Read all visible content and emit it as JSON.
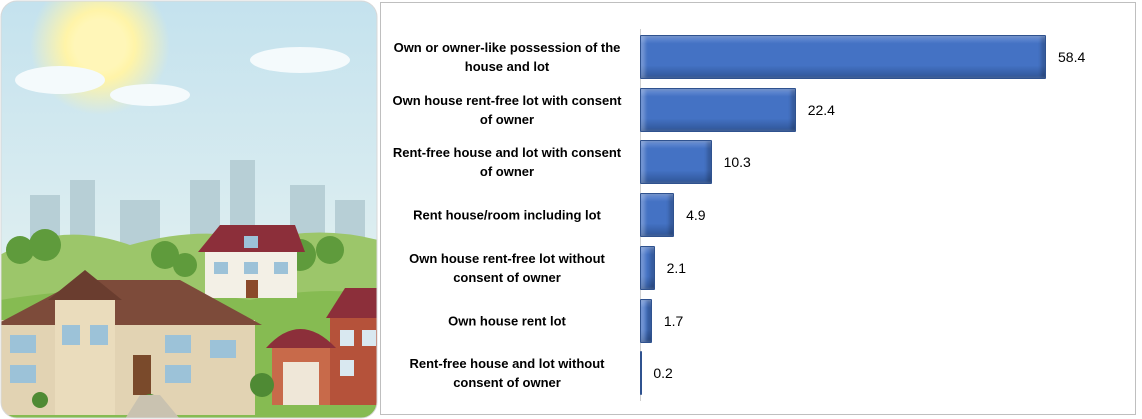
{
  "chart_data": {
    "type": "bar",
    "orientation": "horizontal",
    "categories": [
      "Own or owner-like possession of the house and lot",
      "Own house rent-free lot with consent of owner",
      "Rent-free house and lot with consent of owner",
      "Rent house/room including lot",
      "Own house rent-free lot without consent of owner",
      "Own house rent lot",
      "Rent-free house and lot without consent of owner"
    ],
    "values": [
      58.4,
      22.4,
      10.3,
      4.9,
      2.1,
      1.7,
      0.2
    ],
    "color": "#4472c4"
  }
}
